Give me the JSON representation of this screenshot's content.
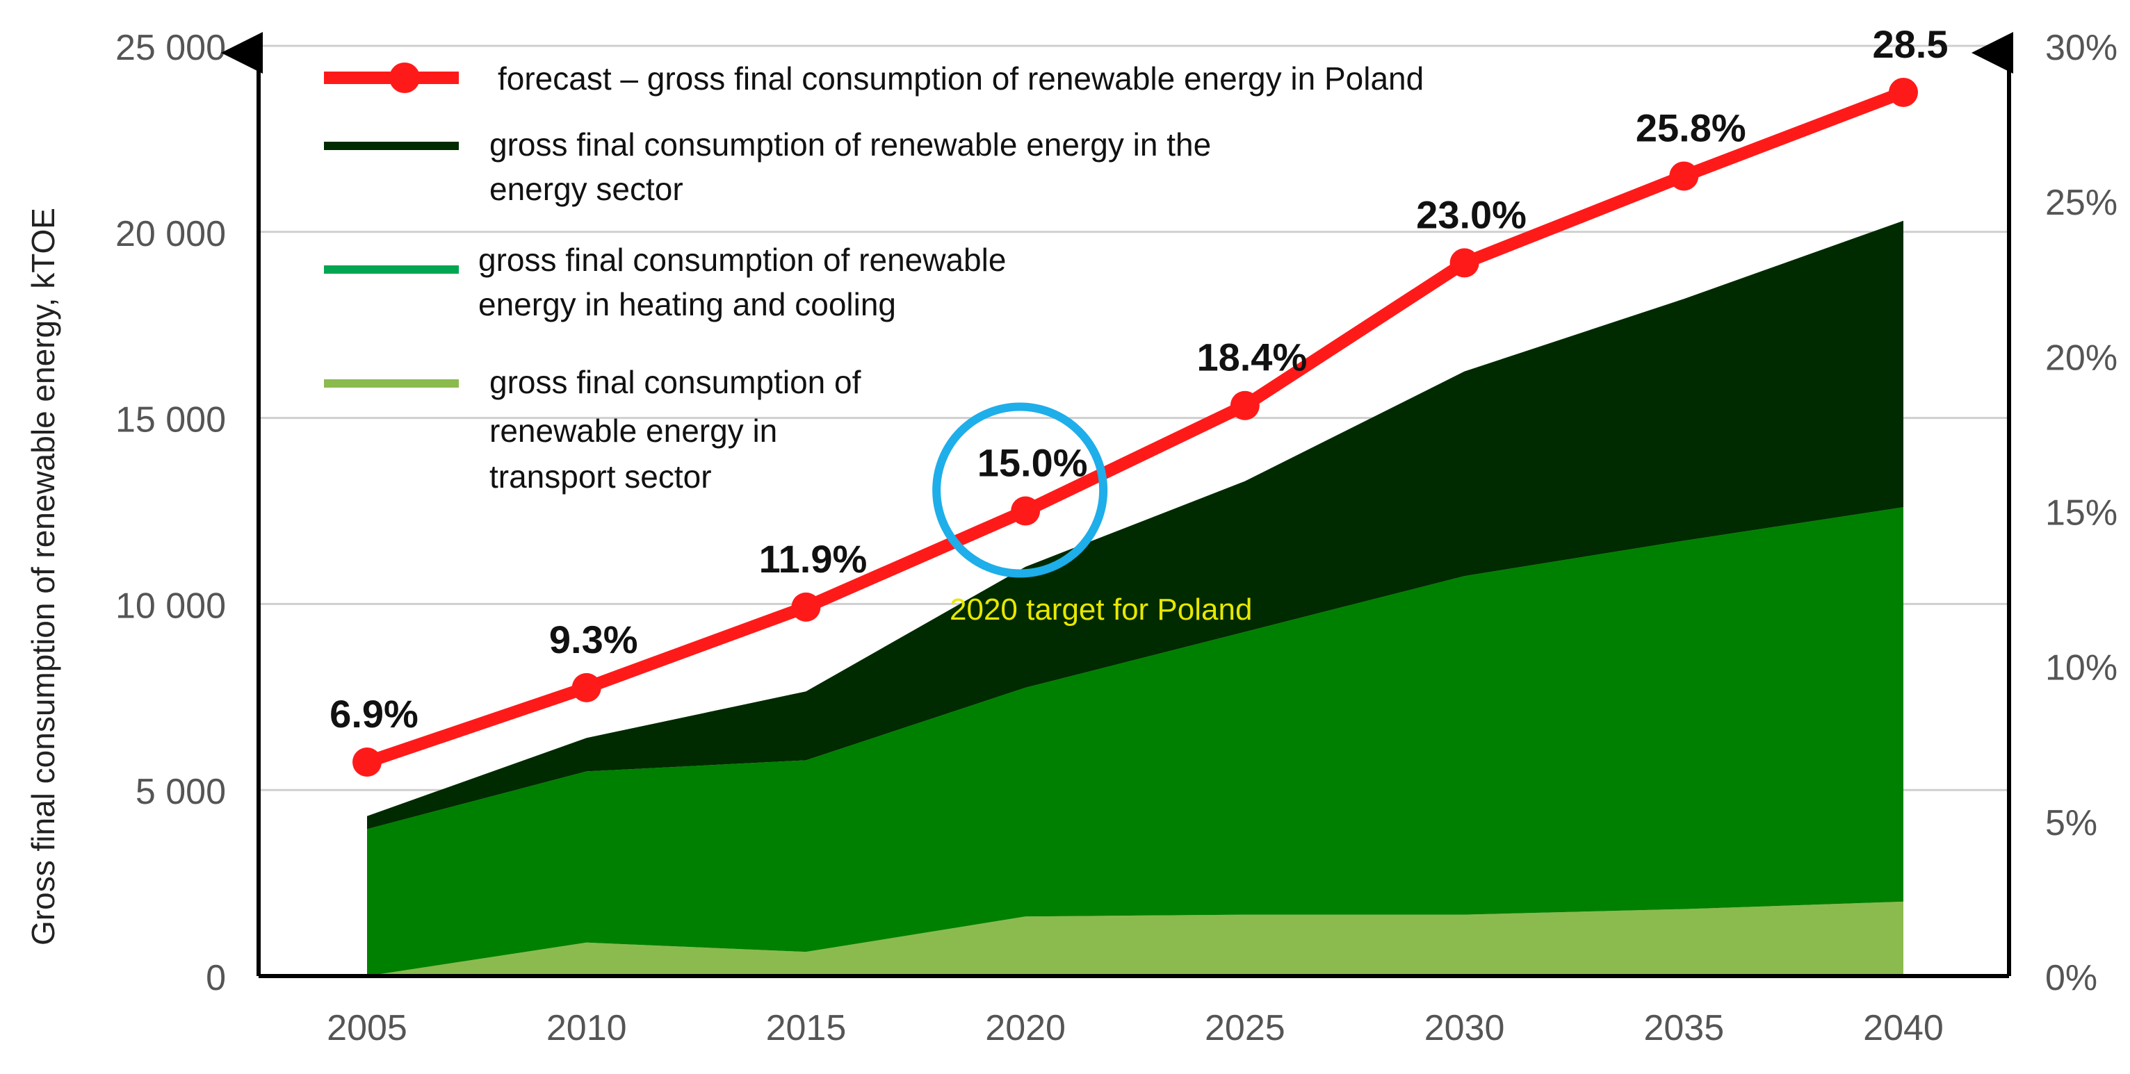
{
  "chart_data": {
    "type": "area",
    "x": [
      2005,
      2010,
      2015,
      2020,
      2025,
      2030,
      2035,
      2040
    ],
    "ylabel": "Gross final consumption of renewable energy, kTOE",
    "ylim": [
      0,
      25000
    ],
    "y_ticks": [
      "0",
      "5 000",
      "10 000",
      "15 000",
      "20 000",
      "25 000"
    ],
    "y2lim": [
      0,
      30
    ],
    "y2_ticks": [
      "0%",
      "5%",
      "10%",
      "15%",
      "20%",
      "25%",
      "30%"
    ],
    "grid": true,
    "legend_position": "top-left",
    "series": [
      {
        "name": "gross final consumption of renewable energy in transport sector",
        "legend_lines": [
          "gross final consumption of",
          "renewable energy in",
          "transport sector"
        ],
        "color": "#8bbb4e",
        "values": [
          0,
          900,
          650,
          1600,
          1650,
          1650,
          1800,
          2000
        ]
      },
      {
        "name": "gross final consumption of renewable energy in heating and cooling",
        "legend_lines": [
          "gross final consumption of renewable",
          "energy in heating and cooling"
        ],
        "color": "#008000",
        "legend_color": "#00a651",
        "values": [
          3950,
          4600,
          5150,
          6150,
          7600,
          9100,
          9900,
          10600
        ]
      },
      {
        "name": "gross final consumption of renewable energy in the energy sector",
        "legend_lines": [
          "gross final consumption of renewable energy in the",
          "energy sector"
        ],
        "color": "#002b00",
        "values": [
          350,
          900,
          1850,
          3250,
          4050,
          5500,
          6500,
          7700
        ]
      },
      {
        "name": "forecast – gross final consumption of renewable energy in Poland",
        "legend_lines": [
          "forecast – gross final consumption of renewable energy in Poland"
        ],
        "color": "#ff1a1a",
        "axis": "right",
        "type": "line",
        "values": [
          6.9,
          9.3,
          11.9,
          15.0,
          18.4,
          23.0,
          25.8,
          28.5
        ],
        "labels": [
          "6.9%",
          "9.3%",
          "11.9%",
          "15.0%",
          "18.4%",
          "23.0%",
          "25.8%",
          "28.5"
        ]
      }
    ],
    "annotations": [
      {
        "text": "2020 target for Poland",
        "x": 2020,
        "circle_color": "#1eaeea",
        "text_color": "#e8e800"
      }
    ]
  }
}
